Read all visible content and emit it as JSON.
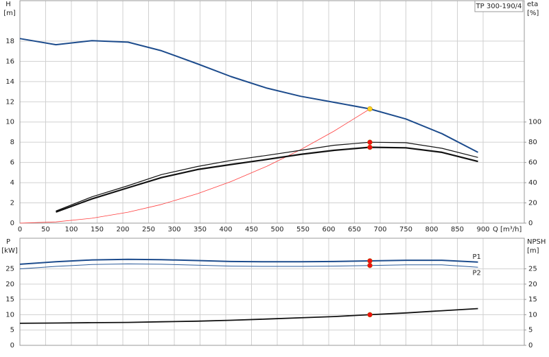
{
  "chart_data": [
    {
      "type": "line",
      "title": "TP 300-190/4",
      "ylabel": "H",
      "ylabel_unit": "[m]",
      "y2label": "eta",
      "y2label_unit": "[%]",
      "xlabel": "Q [m³/h]",
      "xlim": [
        0,
        980
      ],
      "xticks": [
        0,
        50,
        100,
        150,
        200,
        250,
        300,
        350,
        400,
        450,
        500,
        550,
        600,
        650,
        700,
        750,
        800,
        850,
        900
      ],
      "show_xtick_labels": true,
      "ylim": [
        0,
        22
      ],
      "yticks": [
        0,
        2,
        4,
        6,
        8,
        10,
        12,
        14,
        16,
        18
      ],
      "y2lim": [
        0,
        220
      ],
      "y2ticks": [
        0,
        20,
        40,
        60,
        80,
        100
      ],
      "grid": true,
      "series": [
        {
          "color": "#1c4b8c",
          "linewidth": 2,
          "x": [
            0,
            70,
            140,
            210,
            275,
            345,
            410,
            480,
            545,
            610,
            680,
            750,
            820,
            890
          ],
          "values": [
            18.25,
            17.65,
            18.05,
            17.9,
            17.05,
            15.75,
            14.5,
            13.35,
            12.55,
            11.95,
            11.3,
            10.3,
            8.85,
            7.0
          ]
        },
        {
          "color": "#ff3b3b",
          "linewidth": 0.8,
          "x": [
            0,
            70,
            140,
            210,
            275,
            345,
            410,
            480,
            545,
            610,
            680
          ],
          "values": [
            0,
            0.12,
            0.48,
            1.08,
            1.85,
            2.91,
            4.11,
            5.63,
            7.26,
            9.09,
            11.3
          ]
        },
        {
          "color": "#111111",
          "linewidth": 1.2,
          "axis": "y2",
          "x": [
            70,
            140,
            210,
            275,
            345,
            410,
            480,
            545,
            610,
            680,
            750,
            820,
            890
          ],
          "values": [
            12,
            26,
            37,
            48,
            56,
            62,
            67,
            72,
            77,
            80,
            79.5,
            74,
            65
          ]
        },
        {
          "color": "#111111",
          "linewidth": 2.2,
          "axis": "y2",
          "x": [
            70,
            140,
            210,
            275,
            345,
            410,
            480,
            545,
            610,
            680,
            750,
            820,
            890
          ],
          "values": [
            11,
            24,
            35,
            45,
            53,
            58,
            63,
            68,
            72,
            75,
            74.5,
            70,
            61
          ]
        }
      ],
      "markers": [
        {
          "x": 680,
          "y": 11.3,
          "color": "#ffd21f"
        },
        {
          "x": 680,
          "y": 80,
          "axis": "y2",
          "color": "#ee1111"
        },
        {
          "x": 680,
          "y": 75,
          "axis": "y2",
          "color": "#ee1111"
        }
      ]
    },
    {
      "type": "line",
      "ylabel": "P",
      "ylabel_unit": "[kW]",
      "y2label": "NPSH",
      "y2label_unit": "[m]",
      "xlim": [
        0,
        980
      ],
      "xticks": [
        0,
        50,
        100,
        150,
        200,
        250,
        300,
        350,
        400,
        450,
        500,
        550,
        600,
        650,
        700,
        750,
        800,
        850,
        900
      ],
      "show_xtick_labels": false,
      "ylim": [
        0,
        35
      ],
      "yticks": [
        0,
        5,
        10,
        15,
        20,
        25
      ],
      "y2lim": [
        0,
        35
      ],
      "y2ticks": [
        0,
        5,
        10,
        15,
        20,
        25
      ],
      "grid": true,
      "series": [
        {
          "name": "P1",
          "color": "#1c4b8c",
          "linewidth": 2,
          "x": [
            0,
            70,
            140,
            210,
            275,
            345,
            410,
            480,
            545,
            610,
            680,
            750,
            820,
            890
          ],
          "values": [
            26.5,
            27.3,
            27.9,
            28.1,
            28.0,
            27.7,
            27.4,
            27.3,
            27.3,
            27.4,
            27.6,
            27.8,
            27.8,
            27.2
          ]
        },
        {
          "name": "P2",
          "color": "#2a5a9a",
          "linewidth": 1,
          "x": [
            0,
            70,
            140,
            210,
            275,
            345,
            410,
            480,
            545,
            610,
            680,
            750,
            820,
            890
          ],
          "values": [
            25.0,
            25.8,
            26.4,
            26.6,
            26.5,
            26.2,
            25.9,
            25.8,
            25.8,
            25.9,
            26.1,
            26.3,
            26.3,
            25.5
          ]
        },
        {
          "color": "#111111",
          "linewidth": 1.8,
          "axis": "y2",
          "x": [
            0,
            70,
            140,
            210,
            275,
            345,
            410,
            480,
            545,
            610,
            680,
            750,
            820,
            890
          ],
          "values": [
            7.2,
            7.3,
            7.4,
            7.5,
            7.7,
            7.9,
            8.2,
            8.6,
            9.0,
            9.4,
            10.0,
            10.6,
            11.3,
            12.0
          ]
        }
      ],
      "markers": [
        {
          "x": 680,
          "y": 27.6,
          "color": "#ee1111"
        },
        {
          "x": 680,
          "y": 26.1,
          "color": "#ee1111"
        },
        {
          "x": 680,
          "y": 10.0,
          "axis": "y2",
          "color": "#ee1111"
        }
      ]
    }
  ]
}
